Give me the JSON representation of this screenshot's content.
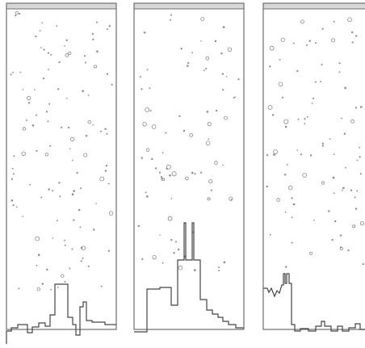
{
  "panels": [
    {
      "name": "left",
      "stars": 115
    },
    {
      "name": "center",
      "stars": 85
    },
    {
      "name": "right",
      "stars": 90
    }
  ]
}
